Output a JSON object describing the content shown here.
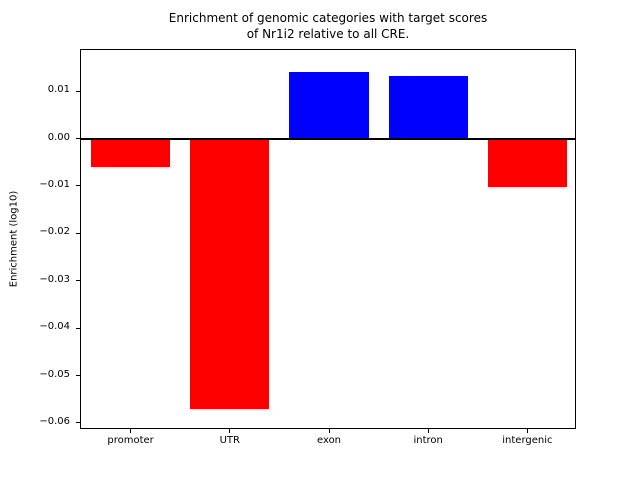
{
  "figure": {
    "title": "Enrichment of genomic categories with target scores\nof Nr1i2 relative to all CRE.",
    "ylabel": "Enrichment (log10)"
  },
  "chart_data": {
    "type": "bar",
    "title": "Enrichment of genomic categories with target scores of Nr1i2 relative to all CRE.",
    "xlabel": "",
    "ylabel": "Enrichment (log10)",
    "categories": [
      "promoter",
      "UTR",
      "exon",
      "intron",
      "intergenic"
    ],
    "values": [
      -0.006,
      -0.057,
      0.014,
      0.0132,
      -0.0102
    ],
    "bar_colors": [
      "#ff0000",
      "#ff0000",
      "#0000ff",
      "#0000ff",
      "#ff0000"
    ],
    "positive_color": "#0000ff",
    "negative_color": "#ff0000",
    "ylim": [
      -0.0615,
      0.0187
    ],
    "yticks": [
      0.01,
      0.0,
      -0.01,
      -0.02,
      -0.03,
      -0.04,
      -0.05,
      -0.06
    ],
    "ytick_labels": [
      "0.01",
      "0.00",
      "−0.01",
      "−0.02",
      "−0.03",
      "−0.04",
      "−0.05",
      "−0.06"
    ],
    "grid": false,
    "legend": false,
    "zero_line": true,
    "bar_width_fraction": 0.8
  }
}
